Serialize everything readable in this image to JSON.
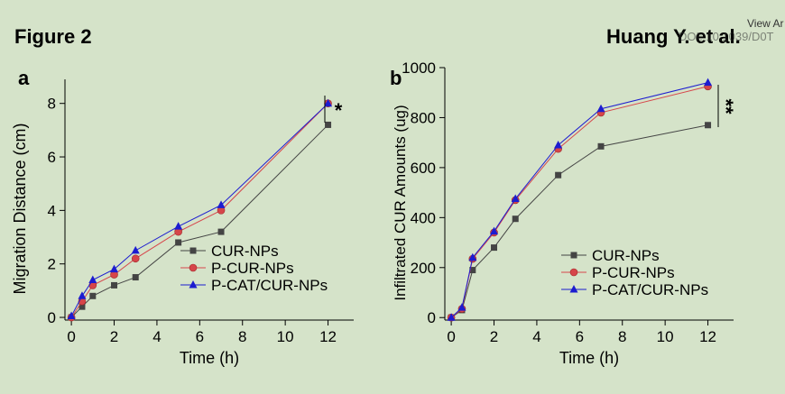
{
  "header": {
    "figure_label": "Figure 2",
    "author_label": "Huang Y. et al.",
    "view_label": "View Ar",
    "doi_fragment": "DOI: 10.1039/D0T"
  },
  "colors": {
    "background": "#d5e3c9",
    "cur": "#444444",
    "pcur": "#d6454a",
    "pcat": "#1c1cd0"
  },
  "chart_data": [
    {
      "type": "line",
      "panel": "a",
      "xlabel": "Time (h)",
      "ylabel": "Migration Distance (cm)",
      "xlim": [
        -0.3,
        13.2
      ],
      "ylim": [
        -0.1,
        8.9
      ],
      "xticks": [
        0,
        2,
        4,
        6,
        8,
        10,
        12
      ],
      "yticks": [
        0,
        2,
        4,
        6,
        8
      ],
      "significance": "*",
      "legend": "lower-right",
      "series": [
        {
          "name": "CUR-NPs",
          "marker": "square",
          "color": "#444444",
          "x": [
            0,
            0.5,
            1,
            2,
            3,
            5,
            7,
            12
          ],
          "y": [
            0,
            0.4,
            0.8,
            1.2,
            1.5,
            2.8,
            3.2,
            7.2
          ]
        },
        {
          "name": "P-CUR-NPs",
          "marker": "circle",
          "color": "#d6454a",
          "x": [
            0,
            0.5,
            1,
            2,
            3,
            5,
            7,
            12
          ],
          "y": [
            0,
            0.6,
            1.2,
            1.6,
            2.2,
            3.2,
            4.0,
            8.0
          ]
        },
        {
          "name": "P-CAT/CUR-NPs",
          "marker": "triangle",
          "color": "#1c1cd0",
          "x": [
            0,
            0.5,
            1,
            2,
            3,
            5,
            7,
            12
          ],
          "y": [
            0.05,
            0.8,
            1.4,
            1.8,
            2.5,
            3.4,
            4.2,
            8.0
          ]
        }
      ]
    },
    {
      "type": "line",
      "panel": "b",
      "xlabel": "Time (h)",
      "ylabel": "Infiltrated CUR Amounts (ug)",
      "xlim": [
        -0.3,
        13.2
      ],
      "ylim": [
        -10,
        1000
      ],
      "xticks": [
        0,
        2,
        4,
        6,
        8,
        10,
        12
      ],
      "yticks": [
        0,
        200,
        400,
        600,
        800,
        1000
      ],
      "significance": "**",
      "legend": "lower-right",
      "series": [
        {
          "name": "CUR-NPs",
          "marker": "square",
          "color": "#444444",
          "x": [
            0,
            0.5,
            1,
            2,
            3,
            5,
            7,
            12
          ],
          "y": [
            0,
            30,
            190,
            280,
            395,
            570,
            685,
            770
          ]
        },
        {
          "name": "P-CUR-NPs",
          "marker": "circle",
          "color": "#d6454a",
          "x": [
            0,
            0.5,
            1,
            2,
            3,
            5,
            7,
            12
          ],
          "y": [
            0,
            35,
            235,
            340,
            470,
            675,
            820,
            925
          ]
        },
        {
          "name": "P-CAT/CUR-NPs",
          "marker": "triangle",
          "color": "#1c1cd0",
          "x": [
            0,
            0.5,
            1,
            2,
            3,
            5,
            7,
            12
          ],
          "y": [
            0,
            40,
            240,
            345,
            475,
            690,
            835,
            940
          ]
        }
      ]
    }
  ]
}
